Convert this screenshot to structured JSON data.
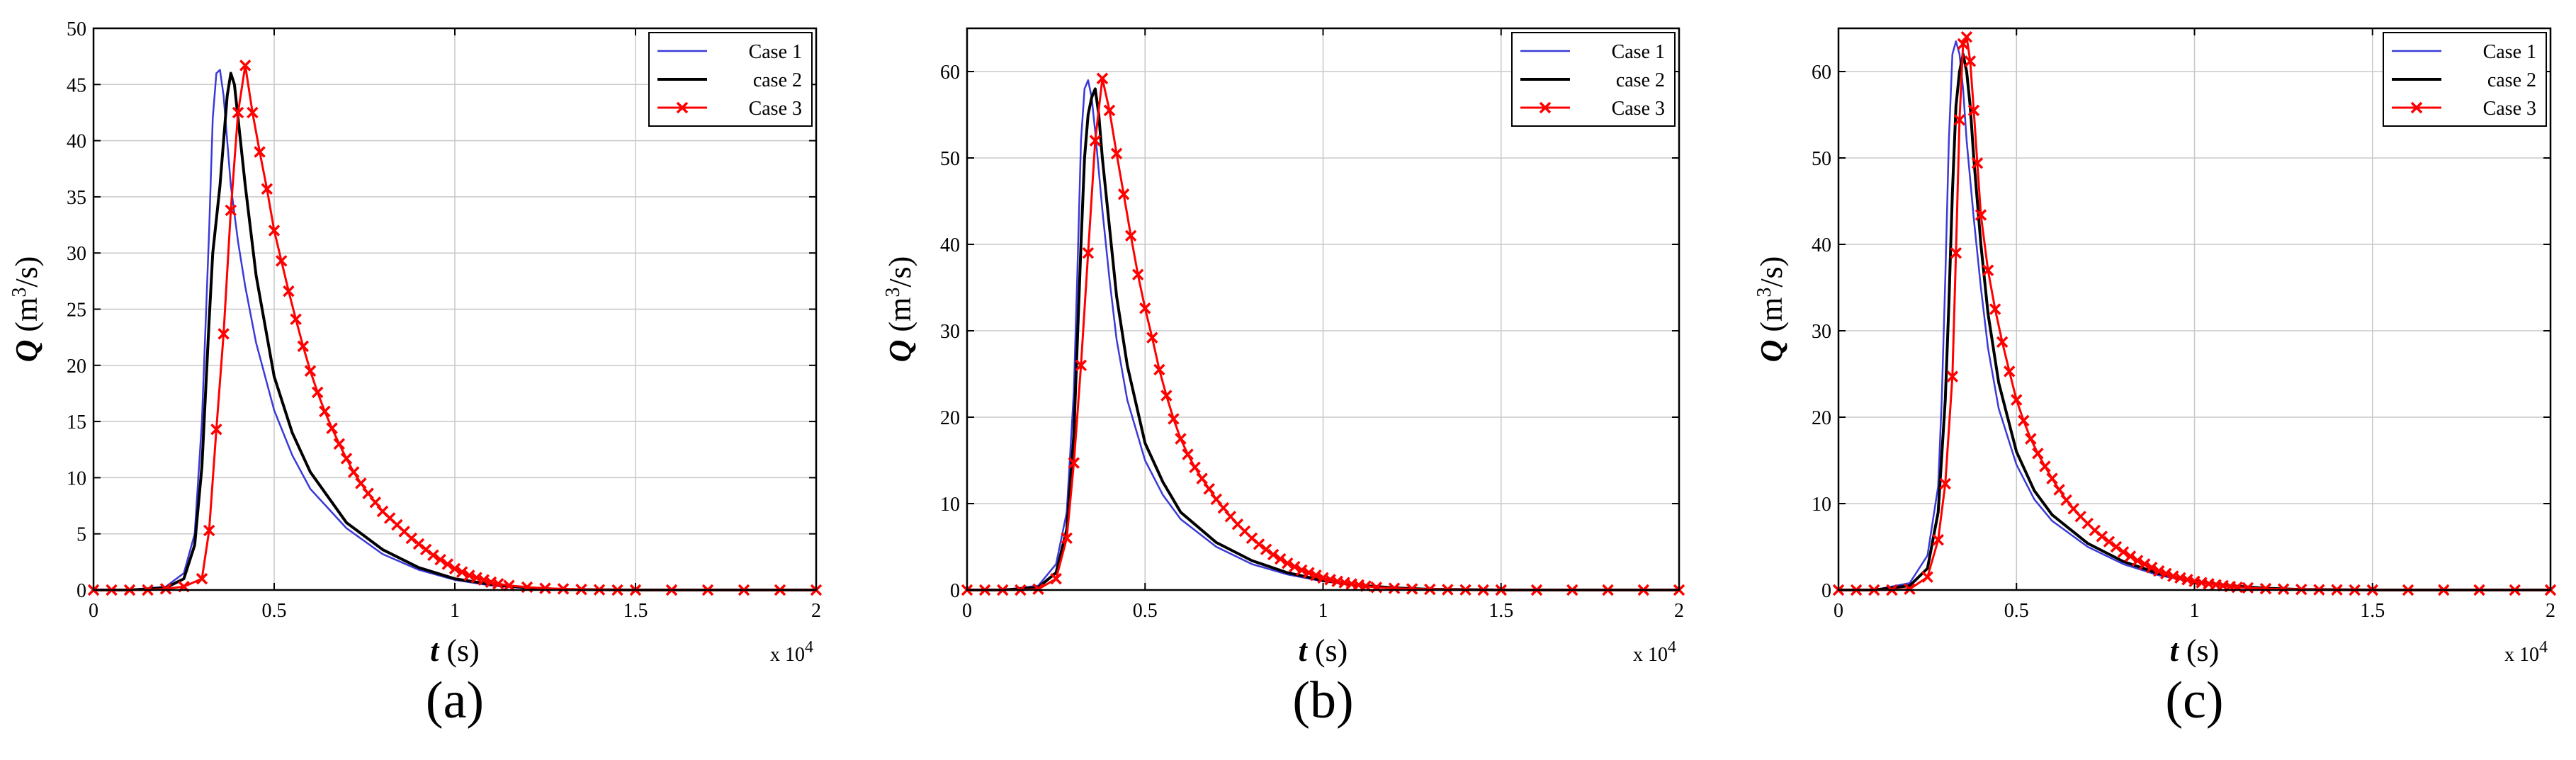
{
  "colors": {
    "case1": "#3a3ad8",
    "case2": "#000000",
    "case3": "#ff0000",
    "grid": "#c8c8c8"
  },
  "chart_data": [
    {
      "type": "line",
      "panel_label": "(a)",
      "xlabel_var": "t",
      "xlabel_unit": "(s)",
      "ylabel_var": "Q",
      "ylabel_unit": "(m3/s)",
      "x_multiplier": "x 10^4",
      "xlim": [
        0,
        2
      ],
      "ylim": [
        0,
        50
      ],
      "xticks": [
        0,
        0.5,
        1,
        1.5,
        2
      ],
      "xtick_labels": [
        "0",
        "0.5",
        "1",
        "1.5",
        "2"
      ],
      "yticks": [
        0,
        5,
        10,
        15,
        20,
        25,
        30,
        35,
        40,
        45,
        50
      ],
      "ytick_labels": [
        "0",
        "5",
        "10",
        "15",
        "20",
        "25",
        "30",
        "35",
        "40",
        "45",
        "50"
      ],
      "grid": true,
      "legend_position": "top-right",
      "series": [
        {
          "name": "Case 1",
          "x": [
            0,
            0.1,
            0.2,
            0.25,
            0.28,
            0.3,
            0.32,
            0.33,
            0.34,
            0.35,
            0.36,
            0.37,
            0.38,
            0.4,
            0.42,
            0.45,
            0.5,
            0.55,
            0.6,
            0.7,
            0.8,
            0.9,
            1.0,
            1.1,
            1.2,
            1.3,
            1.5,
            1.7,
            2.0
          ],
          "y": [
            0,
            0,
            0.3,
            1.5,
            5,
            15,
            32,
            42,
            46,
            46.3,
            44,
            40,
            36,
            31,
            27,
            22,
            16,
            12,
            9,
            5.5,
            3.2,
            1.8,
            0.9,
            0.4,
            0.15,
            0.05,
            0,
            0,
            0
          ]
        },
        {
          "name": "case 2",
          "x": [
            0,
            0.1,
            0.2,
            0.25,
            0.28,
            0.3,
            0.32,
            0.33,
            0.34,
            0.35,
            0.36,
            0.37,
            0.38,
            0.39,
            0.4,
            0.42,
            0.45,
            0.5,
            0.55,
            0.6,
            0.7,
            0.8,
            0.9,
            1.0,
            1.1,
            1.2,
            1.3,
            1.5,
            2.0
          ],
          "y": [
            0,
            0,
            0.2,
            1.0,
            4,
            11,
            24,
            30,
            33,
            36,
            40,
            44,
            46,
            45,
            42,
            36,
            28,
            19,
            14,
            10.5,
            6,
            3.6,
            2,
            1,
            0.5,
            0.2,
            0.05,
            0,
            0
          ]
        },
        {
          "name": "Case 3",
          "x": [
            0,
            0.05,
            0.1,
            0.15,
            0.2,
            0.25,
            0.3,
            0.32,
            0.34,
            0.36,
            0.38,
            0.4,
            0.42,
            0.44,
            0.46,
            0.48,
            0.5,
            0.52,
            0.54,
            0.56,
            0.58,
            0.6,
            0.62,
            0.64,
            0.66,
            0.68,
            0.7,
            0.72,
            0.74,
            0.76,
            0.78,
            0.8,
            0.82,
            0.84,
            0.86,
            0.88,
            0.9,
            0.92,
            0.94,
            0.96,
            0.98,
            1.0,
            1.02,
            1.04,
            1.06,
            1.08,
            1.1,
            1.12,
            1.15,
            1.2,
            1.25,
            1.3,
            1.35,
            1.4,
            1.45,
            1.5,
            1.6,
            1.7,
            1.8,
            1.9,
            2.0
          ],
          "y": [
            0,
            0,
            0,
            0,
            0.1,
            0.3,
            1.0,
            5.3,
            14.3,
            22.8,
            33.8,
            42.5,
            46.7,
            42.5,
            39.0,
            35.7,
            32.0,
            29.3,
            26.6,
            24.1,
            21.7,
            19.5,
            17.6,
            15.9,
            14.4,
            13.0,
            11.7,
            10.5,
            9.5,
            8.6,
            7.8,
            7.0,
            6.4,
            5.8,
            5.2,
            4.6,
            4.1,
            3.6,
            3.1,
            2.7,
            2.3,
            1.9,
            1.6,
            1.3,
            1.1,
            0.9,
            0.7,
            0.55,
            0.4,
            0.25,
            0.15,
            0.1,
            0.05,
            0.02,
            0,
            0,
            0,
            0,
            0,
            0,
            0
          ]
        }
      ]
    },
    {
      "type": "line",
      "panel_label": "(b)",
      "xlabel_var": "t",
      "xlabel_unit": "(s)",
      "ylabel_var": "Q",
      "ylabel_unit": "(m3/s)",
      "x_multiplier": "x 10^4",
      "xlim": [
        0,
        2
      ],
      "ylim": [
        0,
        65
      ],
      "xticks": [
        0,
        0.5,
        1,
        1.5,
        2
      ],
      "xtick_labels": [
        "0",
        "0.5",
        "1",
        "1.5",
        "2"
      ],
      "yticks": [
        0,
        10,
        20,
        30,
        40,
        50,
        60
      ],
      "ytick_labels": [
        "0",
        "10",
        "20",
        "30",
        "40",
        "50",
        "60"
      ],
      "grid": true,
      "legend_position": "top-right",
      "series": [
        {
          "name": "Case 1",
          "x": [
            0,
            0.1,
            0.2,
            0.25,
            0.28,
            0.3,
            0.31,
            0.32,
            0.33,
            0.34,
            0.35,
            0.36,
            0.38,
            0.4,
            0.42,
            0.45,
            0.5,
            0.55,
            0.6,
            0.7,
            0.8,
            0.9,
            1.0,
            1.1,
            1.2,
            1.3,
            1.5,
            2.0
          ],
          "y": [
            0,
            0,
            0.5,
            3,
            9,
            23,
            37,
            52,
            58,
            59,
            57,
            53,
            44,
            36,
            29,
            22,
            15,
            11,
            8.2,
            5,
            3,
            1.8,
            1,
            0.5,
            0.2,
            0.05,
            0,
            0
          ]
        },
        {
          "name": "case 2",
          "x": [
            0,
            0.1,
            0.2,
            0.25,
            0.28,
            0.3,
            0.32,
            0.33,
            0.34,
            0.35,
            0.36,
            0.37,
            0.38,
            0.4,
            0.42,
            0.45,
            0.5,
            0.55,
            0.6,
            0.7,
            0.8,
            0.9,
            1.0,
            1.1,
            1.2,
            1.3,
            1.5,
            2.0
          ],
          "y": [
            0,
            0,
            0.3,
            2,
            7,
            18,
            40,
            50,
            55,
            57,
            58,
            55,
            50,
            42,
            34,
            26,
            17,
            12.5,
            9,
            5.5,
            3.4,
            2,
            1.1,
            0.55,
            0.25,
            0.08,
            0,
            0
          ]
        },
        {
          "name": "Case 3",
          "x": [
            0,
            0.05,
            0.1,
            0.15,
            0.2,
            0.25,
            0.28,
            0.3,
            0.32,
            0.34,
            0.36,
            0.38,
            0.4,
            0.42,
            0.44,
            0.46,
            0.48,
            0.5,
            0.52,
            0.54,
            0.56,
            0.58,
            0.6,
            0.62,
            0.64,
            0.66,
            0.68,
            0.7,
            0.72,
            0.74,
            0.76,
            0.78,
            0.8,
            0.82,
            0.84,
            0.86,
            0.88,
            0.9,
            0.92,
            0.94,
            0.96,
            0.98,
            1.0,
            1.02,
            1.04,
            1.06,
            1.08,
            1.1,
            1.12,
            1.15,
            1.2,
            1.25,
            1.3,
            1.35,
            1.4,
            1.45,
            1.5,
            1.6,
            1.7,
            1.8,
            1.9,
            2.0
          ],
          "y": [
            0,
            0,
            0,
            0,
            0.1,
            1.3,
            6.0,
            14.7,
            26.0,
            39.0,
            52.0,
            59.2,
            55.5,
            50.5,
            45.8,
            41.0,
            36.5,
            32.6,
            29.2,
            25.5,
            22.5,
            19.8,
            17.5,
            15.7,
            14.2,
            12.9,
            11.7,
            10.5,
            9.5,
            8.5,
            7.6,
            6.8,
            6.0,
            5.3,
            4.7,
            4.1,
            3.6,
            3.1,
            2.7,
            2.3,
            2.0,
            1.7,
            1.4,
            1.2,
            1.0,
            0.85,
            0.7,
            0.58,
            0.45,
            0.3,
            0.2,
            0.12,
            0.07,
            0.04,
            0.02,
            0,
            0,
            0,
            0,
            0,
            0,
            0
          ]
        }
      ]
    },
    {
      "type": "line",
      "panel_label": "(c)",
      "xlabel_var": "t",
      "xlabel_unit": "(s)",
      "ylabel_var": "Q",
      "ylabel_unit": "(m3/s)",
      "x_multiplier": "x 10^4",
      "xlim": [
        0,
        2
      ],
      "ylim": [
        0,
        65
      ],
      "xticks": [
        0,
        0.5,
        1,
        1.5,
        2
      ],
      "xtick_labels": [
        "0",
        "0.5",
        "1",
        "1.5",
        "2"
      ],
      "yticks": [
        0,
        10,
        20,
        30,
        40,
        50,
        60
      ],
      "ytick_labels": [
        "0",
        "10",
        "20",
        "30",
        "40",
        "50",
        "60"
      ],
      "grid": true,
      "legend_position": "top-right",
      "series": [
        {
          "name": "Case 1",
          "x": [
            0,
            0.1,
            0.2,
            0.25,
            0.28,
            0.29,
            0.3,
            0.31,
            0.32,
            0.33,
            0.34,
            0.35,
            0.36,
            0.38,
            0.4,
            0.42,
            0.45,
            0.5,
            0.55,
            0.6,
            0.7,
            0.8,
            0.9,
            1.0,
            1.1,
            1.2,
            1.3,
            1.5,
            2.0
          ],
          "y": [
            0,
            0,
            0.8,
            4,
            12,
            22,
            36,
            52,
            62,
            63.5,
            62,
            58,
            52,
            43,
            35,
            28,
            21,
            14.5,
            10.5,
            8,
            5,
            3,
            1.7,
            0.9,
            0.4,
            0.15,
            0.05,
            0,
            0
          ]
        },
        {
          "name": "case 2",
          "x": [
            0,
            0.1,
            0.2,
            0.25,
            0.28,
            0.3,
            0.31,
            0.32,
            0.33,
            0.34,
            0.35,
            0.36,
            0.37,
            0.38,
            0.4,
            0.42,
            0.45,
            0.5,
            0.55,
            0.6,
            0.7,
            0.8,
            0.9,
            1.0,
            1.1,
            1.2,
            1.3,
            1.5,
            2.0
          ],
          "y": [
            0,
            0,
            0.5,
            2.5,
            9,
            22,
            33,
            46,
            56,
            60,
            62,
            60,
            56,
            50,
            40,
            32,
            24,
            16,
            11.5,
            8.7,
            5.4,
            3.3,
            1.9,
            1,
            0.5,
            0.2,
            0.06,
            0,
            0
          ]
        },
        {
          "name": "Case 3",
          "x": [
            0,
            0.05,
            0.1,
            0.15,
            0.2,
            0.25,
            0.28,
            0.3,
            0.32,
            0.33,
            0.34,
            0.35,
            0.36,
            0.37,
            0.38,
            0.39,
            0.4,
            0.42,
            0.44,
            0.46,
            0.48,
            0.5,
            0.52,
            0.54,
            0.56,
            0.58,
            0.6,
            0.62,
            0.64,
            0.66,
            0.68,
            0.7,
            0.72,
            0.74,
            0.76,
            0.78,
            0.8,
            0.82,
            0.84,
            0.86,
            0.88,
            0.9,
            0.92,
            0.94,
            0.96,
            0.98,
            1.0,
            1.02,
            1.04,
            1.06,
            1.08,
            1.1,
            1.12,
            1.15,
            1.2,
            1.25,
            1.3,
            1.35,
            1.4,
            1.45,
            1.5,
            1.6,
            1.7,
            1.8,
            1.9,
            2.0
          ],
          "y": [
            0,
            0,
            0,
            0,
            0.1,
            1.5,
            5.8,
            12.3,
            24.7,
            39.0,
            54.4,
            63.2,
            64.0,
            61.2,
            55.5,
            49.4,
            43.4,
            37.0,
            32.5,
            28.7,
            25.3,
            22.0,
            19.6,
            17.5,
            15.8,
            14.3,
            12.9,
            11.6,
            10.4,
            9.4,
            8.5,
            7.7,
            6.9,
            6.2,
            5.6,
            5.0,
            4.4,
            3.9,
            3.4,
            3.0,
            2.6,
            2.2,
            1.9,
            1.6,
            1.4,
            1.2,
            1.0,
            0.85,
            0.72,
            0.6,
            0.5,
            0.4,
            0.32,
            0.25,
            0.15,
            0.1,
            0.06,
            0.03,
            0.02,
            0,
            0,
            0,
            0,
            0,
            0,
            0
          ]
        }
      ]
    }
  ]
}
